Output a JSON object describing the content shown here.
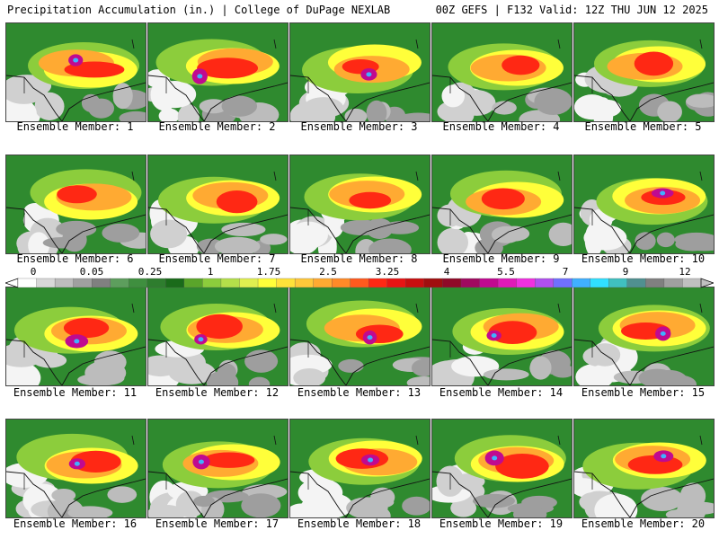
{
  "header": {
    "left": "Precipitation Accumulation (in.) | College of DuPage NEXLAB",
    "right": "00Z GEFS | F132 Valid: 12Z THU JUN 12 2025"
  },
  "colorbar": {
    "tick_labels": [
      "0",
      "0.05",
      "0.25",
      "1",
      "1.75",
      "2.5",
      "3.25",
      "4",
      "5.5",
      "7",
      "9",
      "12"
    ],
    "colors": [
      "#ffffff",
      "#d8d8d8",
      "#bdbdbd",
      "#a0a0a0",
      "#808080",
      "#5d9e5d",
      "#3f8f3f",
      "#2e7d2e",
      "#1a6b1a",
      "#5aa52a",
      "#8ccd3c",
      "#b4e04a",
      "#e0f050",
      "#ffff3a",
      "#ffe23a",
      "#ffc83a",
      "#ffaa32",
      "#ff8a28",
      "#ff5a1e",
      "#ff2814",
      "#e81414",
      "#c80f0f",
      "#a00f0f",
      "#900a28",
      "#a00a60",
      "#c00a90",
      "#e01ab8",
      "#f030e0",
      "#b050f0",
      "#7070ff",
      "#40b0ff",
      "#30e0ff",
      "#40c0c0",
      "#509090",
      "#808080",
      "#a0a0a0",
      "#c0c0c0"
    ]
  },
  "panels": [
    {
      "label": "Ensemble Member: 1"
    },
    {
      "label": "Ensemble Member: 2"
    },
    {
      "label": "Ensemble Member: 3"
    },
    {
      "label": "Ensemble Member: 4"
    },
    {
      "label": "Ensemble Member: 5"
    },
    {
      "label": "Ensemble Member: 6"
    },
    {
      "label": "Ensemble Member: 7"
    },
    {
      "label": "Ensemble Member: 8"
    },
    {
      "label": "Ensemble Member: 9"
    },
    {
      "label": "Ensemble Member: 10"
    },
    {
      "label": "Ensemble Member: 11"
    },
    {
      "label": "Ensemble Member: 12"
    },
    {
      "label": "Ensemble Member: 13"
    },
    {
      "label": "Ensemble Member: 14"
    },
    {
      "label": "Ensemble Member: 15"
    },
    {
      "label": "Ensemble Member: 16"
    },
    {
      "label": "Ensemble Member: 17"
    },
    {
      "label": "Ensemble Member: 18"
    },
    {
      "label": "Ensemble Member: 19"
    },
    {
      "label": "Ensemble Member: 20"
    }
  ]
}
